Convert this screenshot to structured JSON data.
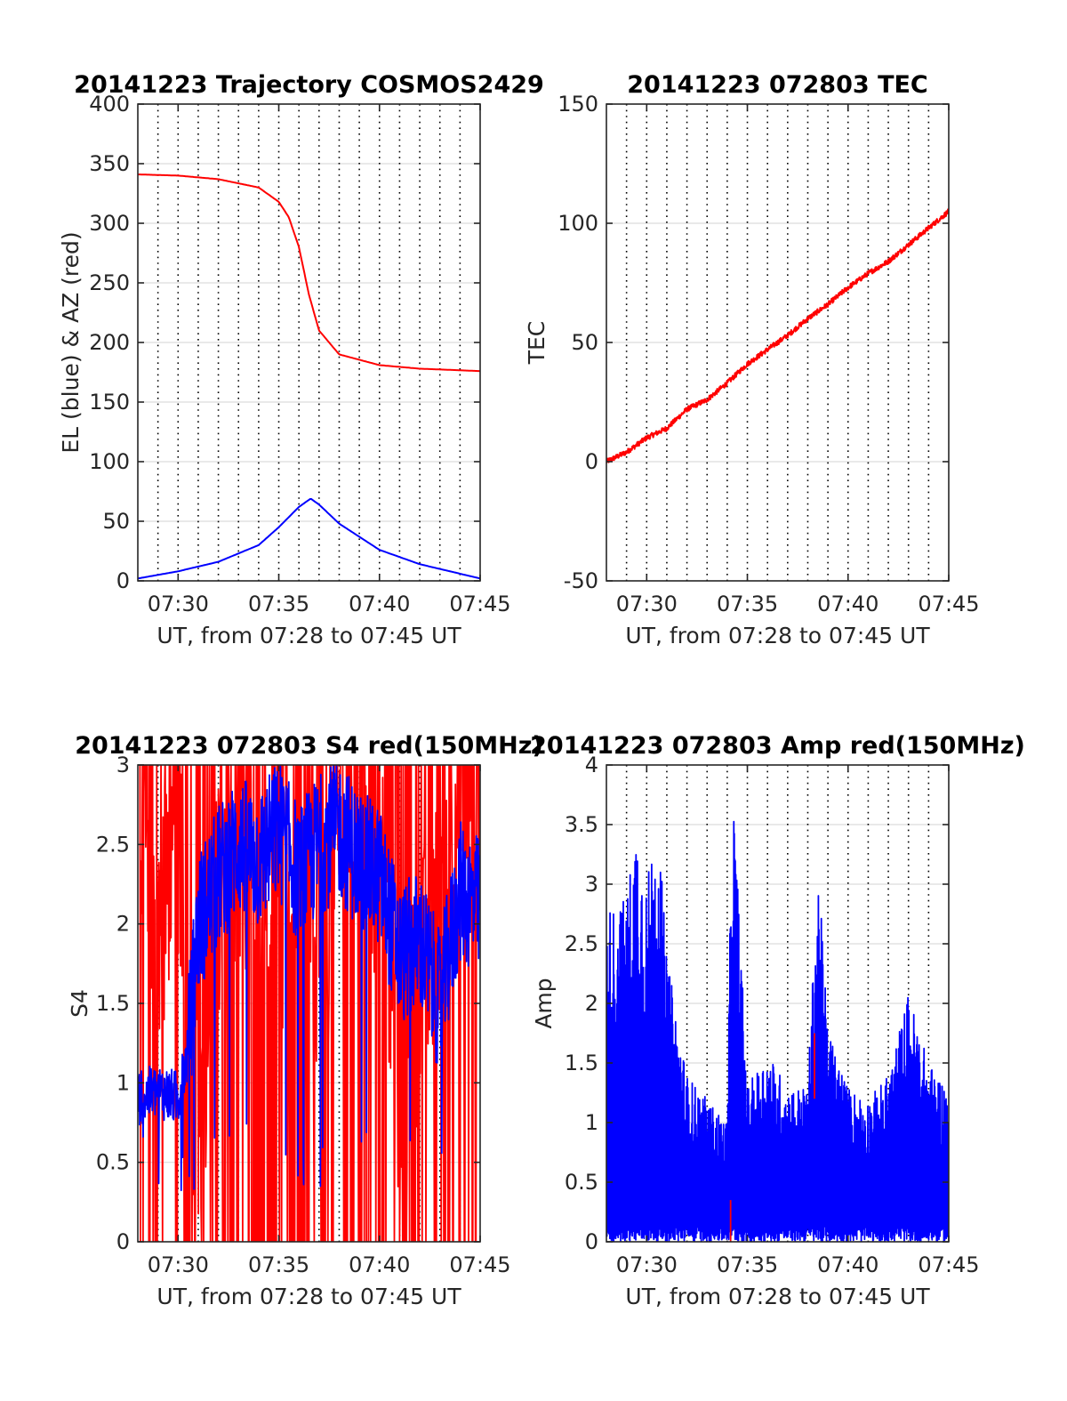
{
  "chart_data": [
    {
      "type": "line",
      "title": "20141223 Trajectory COSMOS2429",
      "xlabel": "UT, from 07:28 to 07:45 UT",
      "ylabel": "EL (blue) & AZ (red)",
      "xlim": [
        "07:28",
        "07:45"
      ],
      "ylim": [
        0,
        400
      ],
      "xticks": [
        "07:30",
        "07:35",
        "07:40",
        "07:45"
      ],
      "yticks": [
        "0",
        "50",
        "100",
        "150",
        "200",
        "250",
        "300",
        "350",
        "400"
      ],
      "grid": true,
      "series": [
        {
          "color": "#ff0000",
          "x": [
            "07:28",
            "07:30",
            "07:32",
            "07:34",
            "07:35",
            "07:35:30",
            "07:36",
            "07:36:30",
            "07:37",
            "07:38",
            "07:40",
            "07:42",
            "07:45"
          ],
          "y": [
            341,
            340,
            337,
            330,
            318,
            305,
            280,
            240,
            210,
            190,
            181,
            178,
            176
          ]
        },
        {
          "color": "#0000ff",
          "x": [
            "07:28",
            "07:30",
            "07:32",
            "07:34",
            "07:35",
            "07:36",
            "07:36:35",
            "07:37",
            "07:38",
            "07:40",
            "07:42",
            "07:45"
          ],
          "y": [
            2,
            8,
            16,
            30,
            45,
            62,
            69,
            64,
            48,
            26,
            14,
            2
          ]
        }
      ]
    },
    {
      "type": "line",
      "title": "20141223 072803 TEC",
      "xlabel": "UT, from 07:28 to 07:45 UT",
      "ylabel": "TEC",
      "xlim": [
        "07:28",
        "07:45"
      ],
      "ylim": [
        -50,
        150
      ],
      "xticks": [
        "07:30",
        "07:35",
        "07:40",
        "07:45"
      ],
      "yticks": [
        "-50",
        "0",
        "50",
        "100",
        "150"
      ],
      "grid": true,
      "series": [
        {
          "color": "#ff0000",
          "x": [
            "07:28",
            "07:29",
            "07:30",
            "07:31",
            "07:32",
            "07:33",
            "07:34",
            "07:35",
            "07:36",
            "07:37",
            "07:38",
            "07:39",
            "07:40",
            "07:41",
            "07:42",
            "07:43",
            "07:44",
            "07:45"
          ],
          "y": [
            0,
            4,
            10,
            14,
            22,
            26,
            33,
            41,
            47,
            53,
            60,
            66,
            73,
            79,
            84,
            91,
            98,
            105
          ]
        }
      ]
    },
    {
      "type": "line",
      "title": "20141223 072803 S4 red(150MHz)",
      "xlabel": "UT, from 07:28 to 07:45 UT",
      "ylabel": "S4",
      "xlim": [
        "07:28",
        "07:45"
      ],
      "ylim": [
        0,
        3
      ],
      "xticks": [
        "07:30",
        "07:35",
        "07:40",
        "07:45"
      ],
      "yticks": [
        "0",
        "0.5",
        "1",
        "1.5",
        "2",
        "2.5",
        "3"
      ],
      "grid": true,
      "series": [
        {
          "color": "#ff0000",
          "x": [
            "07:28",
            "07:29",
            "07:30",
            "07:31",
            "07:32",
            "07:33",
            "07:34",
            "07:35",
            "07:36",
            "07:37",
            "07:38",
            "07:39",
            "07:40",
            "07:41",
            "07:42",
            "07:43",
            "07:44",
            "07:45"
          ],
          "y": [
            2.9,
            2.0,
            2.6,
            0.5,
            2.2,
            2.5,
            2.4,
            1.5,
            2.6,
            1.2,
            2.7,
            2.5,
            2.4,
            1.0,
            1.6,
            2.2,
            2.9,
            2.5
          ]
        },
        {
          "color": "#0000ff",
          "x": [
            "07:28",
            "07:29",
            "07:30",
            "07:30:30",
            "07:31",
            "07:32",
            "07:33",
            "07:34",
            "07:35",
            "07:36",
            "07:37",
            "07:38",
            "07:39",
            "07:40",
            "07:41",
            "07:42",
            "07:43",
            "07:44",
            "07:45"
          ],
          "y": [
            0.9,
            0.95,
            0.9,
            1.2,
            2.0,
            2.3,
            2.5,
            2.4,
            2.6,
            2.3,
            2.5,
            2.6,
            2.4,
            2.3,
            1.8,
            1.9,
            1.5,
            2.2,
            2.1
          ]
        }
      ]
    },
    {
      "type": "line",
      "title": "20141223 072803 Amp red(150MHz)",
      "xlabel": "UT, from 07:28 to 07:45 UT",
      "ylabel": "Amp",
      "xlim": [
        "07:28",
        "07:45"
      ],
      "ylim": [
        0,
        4
      ],
      "xticks": [
        "07:30",
        "07:35",
        "07:40",
        "07:45"
      ],
      "yticks": [
        "0",
        "0.5",
        "1",
        "1.5",
        "2",
        "2.5",
        "3",
        "3.5",
        "4"
      ],
      "grid": true,
      "series": [
        {
          "color": "#0000ff",
          "x": [
            "07:28",
            "07:29",
            "07:29:30",
            "07:30",
            "07:30:30",
            "07:31",
            "07:32",
            "07:33",
            "07:34",
            "07:34:15",
            "07:35",
            "07:36",
            "07:37",
            "07:38",
            "07:38:30",
            "07:39",
            "07:40",
            "07:41",
            "07:42",
            "07:43",
            "07:44",
            "07:45"
          ],
          "y": [
            2.8,
            2.9,
            3.6,
            3.0,
            3.7,
            2.4,
            1.4,
            1.2,
            1.0,
            4.0,
            1.3,
            1.6,
            1.3,
            1.3,
            3.2,
            1.8,
            1.3,
            1.2,
            1.4,
            2.1,
            1.5,
            1.3
          ]
        },
        {
          "color": "#ff0000",
          "x": [
            "07:34",
            "07:34:10",
            "07:38",
            "07:38:20"
          ],
          "y": [
            0.1,
            0.2,
            1.2,
            1.7
          ]
        }
      ]
    }
  ]
}
